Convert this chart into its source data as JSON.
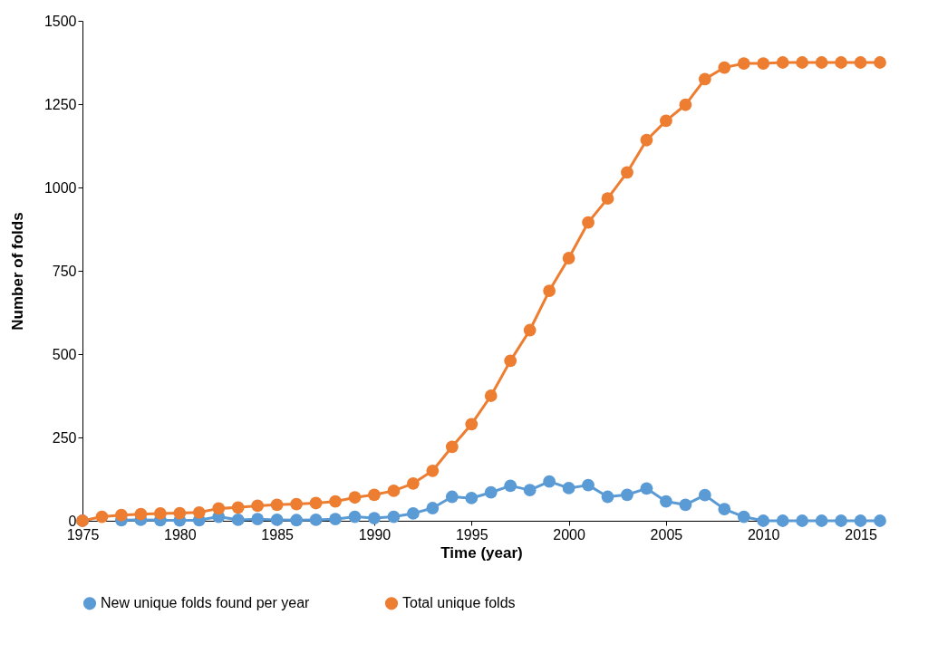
{
  "chart_data": {
    "type": "line",
    "xlabel": "Time (year)",
    "ylabel": "Number of folds",
    "x": [
      1975,
      1976,
      1977,
      1978,
      1979,
      1980,
      1981,
      1982,
      1983,
      1984,
      1985,
      1986,
      1987,
      1988,
      1989,
      1990,
      1991,
      1992,
      1993,
      1994,
      1995,
      1996,
      1997,
      1998,
      1999,
      2000,
      2001,
      2002,
      2003,
      2004,
      2005,
      2006,
      2007,
      2008,
      2009,
      2010,
      2011,
      2012,
      2013,
      2014,
      2015,
      2016
    ],
    "series": [
      {
        "name": "New unique folds found per year",
        "color": "#5b9bd5",
        "values": [
          0,
          null,
          2,
          3,
          2,
          1,
          2,
          12,
          3,
          5,
          3,
          2,
          3,
          5,
          12,
          8,
          12,
          22,
          38,
          72,
          68,
          85,
          105,
          92,
          118,
          98,
          107,
          72,
          78,
          97,
          58,
          48,
          77,
          35,
          12,
          0,
          0,
          0,
          0,
          0,
          0,
          0
        ]
      },
      {
        "name": "Total unique folds",
        "color": "#ed7d31",
        "values": [
          0,
          12,
          17,
          20,
          22,
          23,
          25,
          37,
          40,
          45,
          48,
          50,
          53,
          58,
          70,
          78,
          90,
          112,
          150,
          222,
          290,
          375,
          480,
          572,
          690,
          788,
          895,
          967,
          1045,
          1142,
          1200,
          1248,
          1325,
          1360,
          1372,
          1372,
          1375,
          1375,
          1375,
          1375,
          1375,
          1375
        ]
      }
    ],
    "xlim": [
      1975,
      2016
    ],
    "xticks": [
      1975,
      1980,
      1985,
      1990,
      1995,
      2000,
      2005,
      2010,
      2015
    ],
    "ylim": [
      0,
      1500
    ],
    "yticks": [
      0,
      250,
      500,
      750,
      1000,
      1250,
      1500
    ],
    "grid": false,
    "legend": "bottom",
    "marker": "circle",
    "line_style": "solid"
  }
}
